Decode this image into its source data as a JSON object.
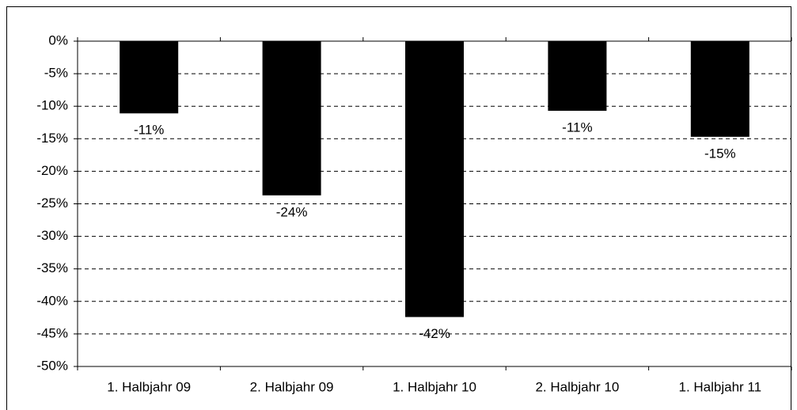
{
  "chart_data": {
    "type": "bar",
    "categories": [
      "1. Halbjahr 09",
      "2. Halbjahr 09",
      "1. Halbjahr 10",
      "2. Halbjahr 10",
      "1. Halbjahr 11"
    ],
    "values": [
      -11.1,
      -23.7,
      -42.4,
      -10.7,
      -14.7
    ],
    "value_labels": [
      "-11%",
      "-24%",
      "-42%",
      "-11%",
      "-15%"
    ],
    "color": "#000000",
    "ylim": [
      -50,
      0
    ],
    "yticks": [
      {
        "value": 0,
        "label": "0%"
      },
      {
        "value": -5,
        "label": "-5%"
      },
      {
        "value": -10,
        "label": "-10%"
      },
      {
        "value": -15,
        "label": "-15%"
      },
      {
        "value": -20,
        "label": "-20%"
      },
      {
        "value": -25,
        "label": "-25%"
      },
      {
        "value": -30,
        "label": "-30%"
      },
      {
        "value": -35,
        "label": "-35%"
      },
      {
        "value": -40,
        "label": "-40%"
      },
      {
        "value": -45,
        "label": "-45%"
      },
      {
        "value": -50,
        "label": "-50%"
      }
    ],
    "grid": true
  }
}
